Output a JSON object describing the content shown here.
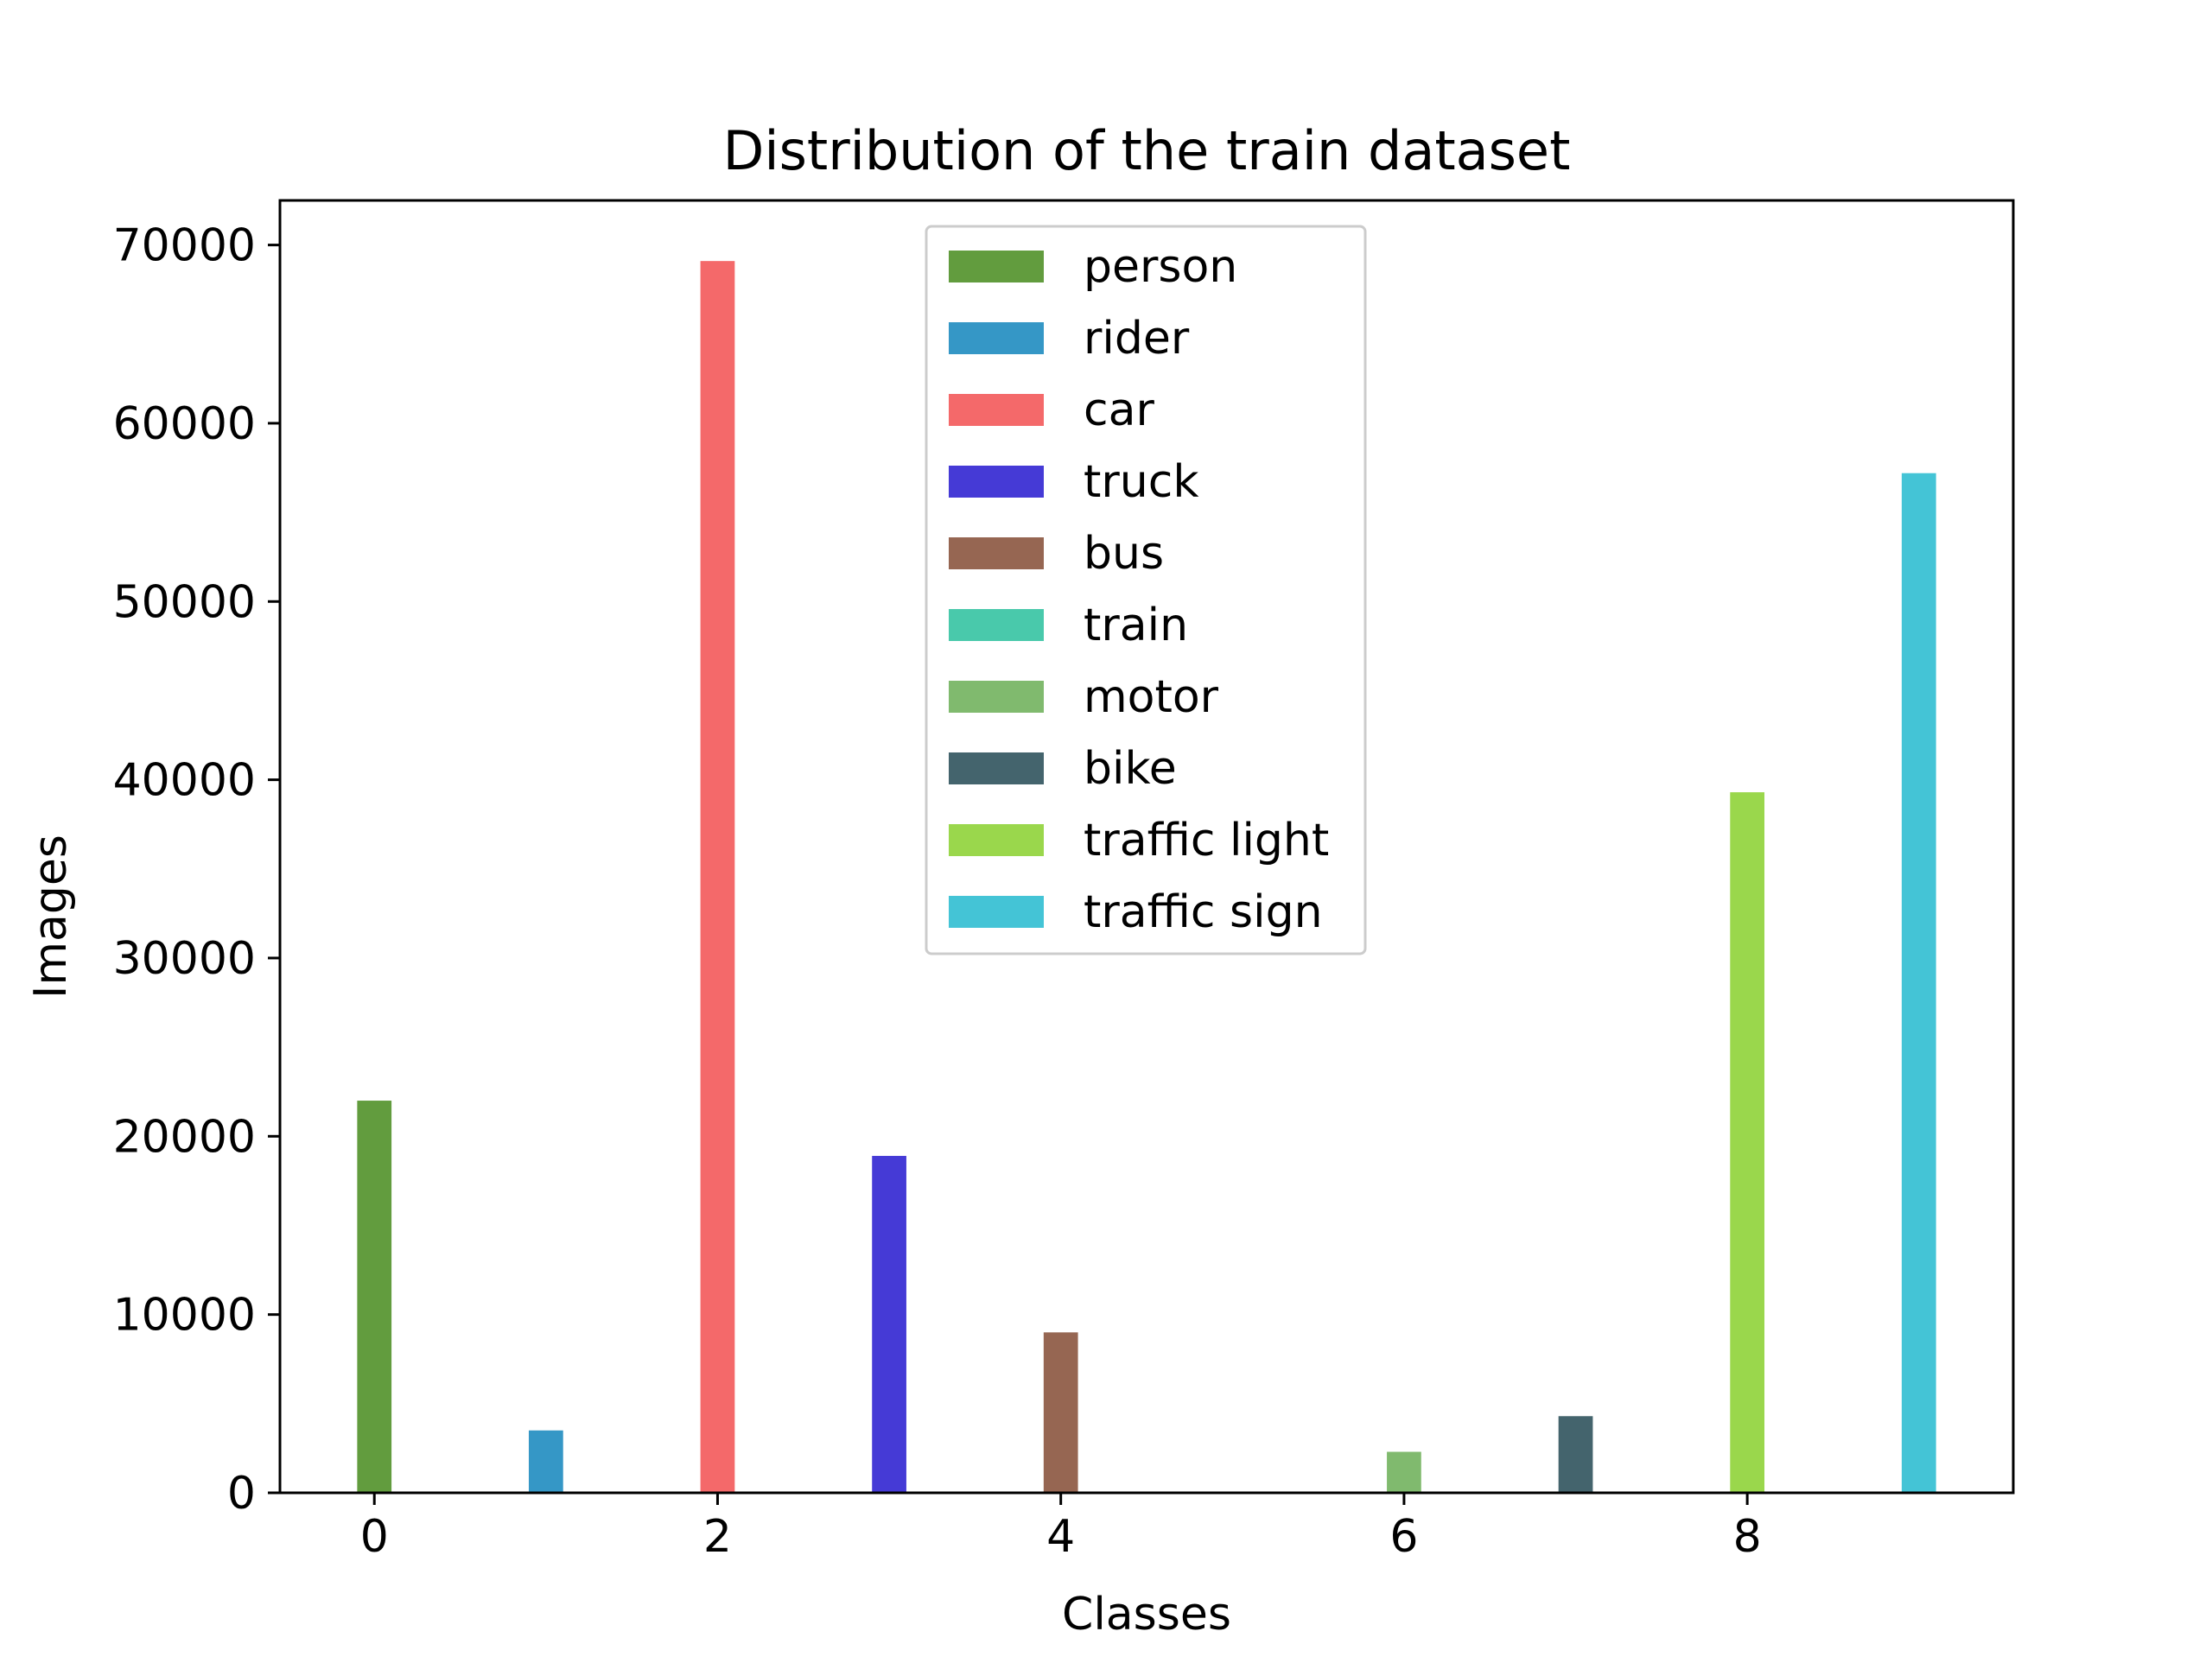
{
  "chart_data": {
    "type": "bar",
    "title": "Distribution of the train dataset",
    "xlabel": "Classes",
    "ylabel": "Images",
    "xlim": [
      -0.55,
      9.55
    ],
    "ylim": [
      0,
      72500
    ],
    "xticks": [
      0,
      2,
      4,
      6,
      8
    ],
    "yticks": [
      0,
      10000,
      20000,
      30000,
      40000,
      50000,
      60000,
      70000
    ],
    "grid": false,
    "legend_position": "top-center",
    "bar_width": 0.2,
    "series": [
      {
        "name": "person",
        "x": 0,
        "value": 22000,
        "color": "#629c3e"
      },
      {
        "name": "rider",
        "x": 1,
        "value": 3500,
        "color": "#3597c6"
      },
      {
        "name": "car",
        "x": 2,
        "value": 69100,
        "color": "#f4696a"
      },
      {
        "name": "truck",
        "x": 3,
        "value": 18900,
        "color": "#453ad6"
      },
      {
        "name": "bus",
        "x": 4,
        "value": 9000,
        "color": "#966652"
      },
      {
        "name": "train",
        "x": 5,
        "value": 0,
        "color": "#49c9ab"
      },
      {
        "name": "motor",
        "x": 6,
        "value": 2300,
        "color": "#80ba6e"
      },
      {
        "name": "bike",
        "x": 7,
        "value": 4300,
        "color": "#44646d"
      },
      {
        "name": "traffic light",
        "x": 8,
        "value": 39300,
        "color": "#9ad74c"
      },
      {
        "name": "traffic sign",
        "x": 9,
        "value": 57200,
        "color": "#44c4d6"
      }
    ]
  }
}
